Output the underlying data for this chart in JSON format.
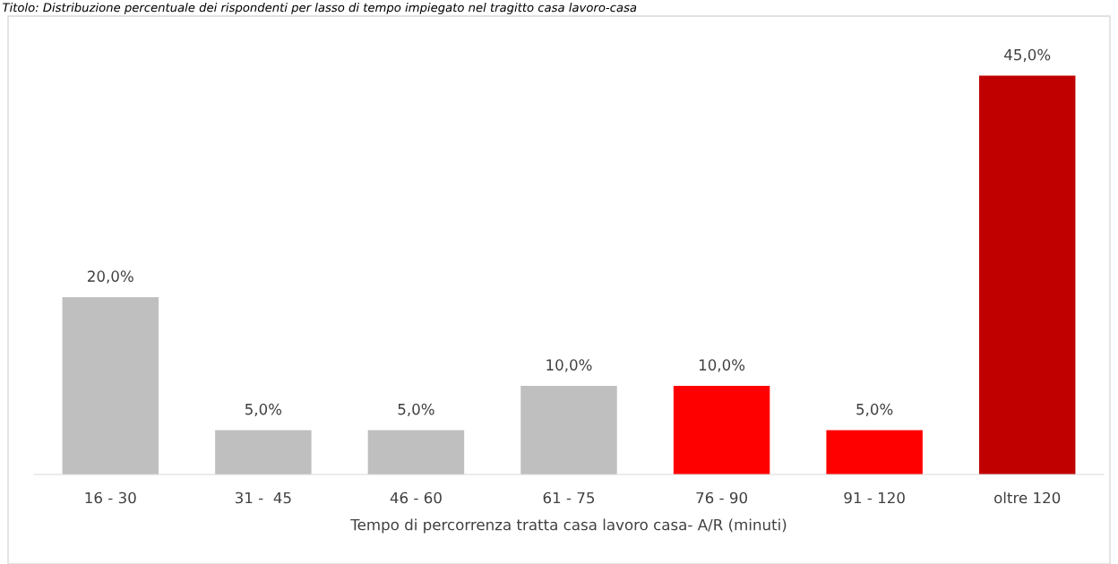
{
  "chart_data": {
    "type": "bar",
    "title": "Titolo: Distribuzione percentuale dei rispondenti per lasso di tempo impiegato nel tragitto casa lavoro-casa",
    "xlabel": "Tempo di percorrenza tratta casa lavoro casa- A/R (minuti)",
    "categories": [
      "16 - 30",
      "31 -  45",
      "46 - 60",
      "61 - 75",
      "76 - 90",
      "91 - 120",
      "oltre 120"
    ],
    "values": [
      20,
      5,
      5,
      10,
      10,
      5,
      45
    ],
    "colors": [
      "#bfbfbf",
      "#bfbfbf",
      "#bfbfbf",
      "#bfbfbf",
      "#ff0000",
      "#ff0000",
      "#c00000"
    ],
    "value_labels": [
      "20,0%",
      "5,0%",
      "5,0%",
      "10,0%",
      "10,0%",
      "5,0%",
      "45,0%"
    ],
    "grid": false,
    "legend": false,
    "tick_labels": "x"
  }
}
